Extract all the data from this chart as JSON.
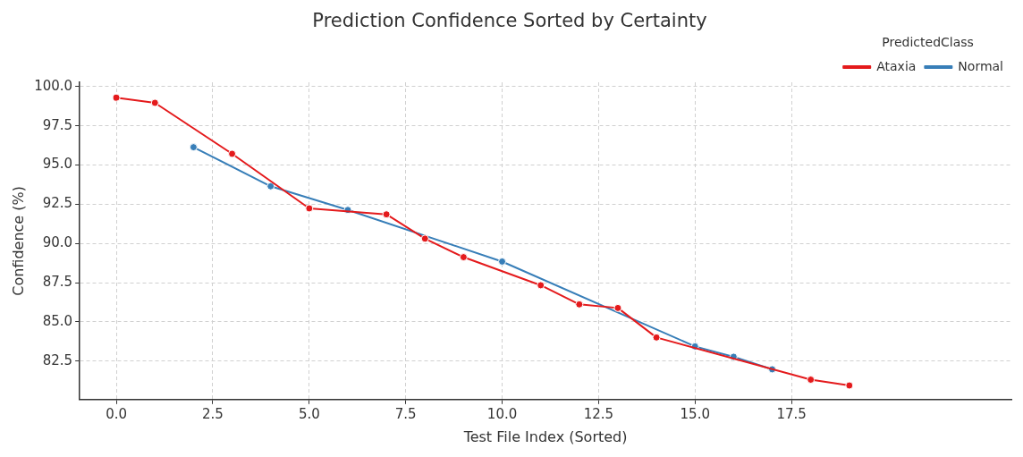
{
  "chart_data": {
    "type": "line",
    "title": "Prediction Confidence Sorted by Certainty",
    "xlabel": "Test File Index (Sorted)",
    "ylabel": "Confidence (%)",
    "legend_title": "PredictedClass",
    "series": [
      {
        "name": "Ataxia",
        "color": "#e41a1c",
        "x": [
          0,
          1,
          3,
          5,
          7,
          8,
          9,
          11,
          12,
          13,
          14,
          18,
          19
        ],
        "values": [
          99.3,
          98.97,
          95.72,
          92.24,
          91.86,
          90.31,
          89.13,
          87.34,
          86.12,
          85.89,
          84.01,
          81.32,
          80.95
        ]
      },
      {
        "name": "Normal",
        "color": "#377eb8",
        "x": [
          2,
          4,
          6,
          10,
          15,
          16,
          17
        ],
        "values": [
          96.14,
          93.65,
          92.14,
          88.85,
          83.44,
          82.78,
          81.98
        ]
      }
    ],
    "xlim": [
      -0.95,
      23.2
    ],
    "ylim": [
      80.05,
      100.28
    ],
    "xticks": [
      {
        "value": 0,
        "label": "0.0"
      },
      2.5,
      {
        "value": 5,
        "label": "5.0"
      },
      7.5,
      {
        "value": 10,
        "label": "10.0"
      },
      12.5,
      {
        "value": 15,
        "label": "15.0"
      },
      17.5
    ],
    "yticks": [
      82.5,
      {
        "value": 85,
        "label": "85.0"
      },
      87.5,
      {
        "value": 90,
        "label": "90.0"
      },
      92.5,
      {
        "value": 95,
        "label": "95.0"
      },
      97.5,
      {
        "value": 100,
        "label": "100.0"
      }
    ],
    "grid": true,
    "legend": "top right",
    "marker": "circle",
    "line_style": "solid"
  }
}
